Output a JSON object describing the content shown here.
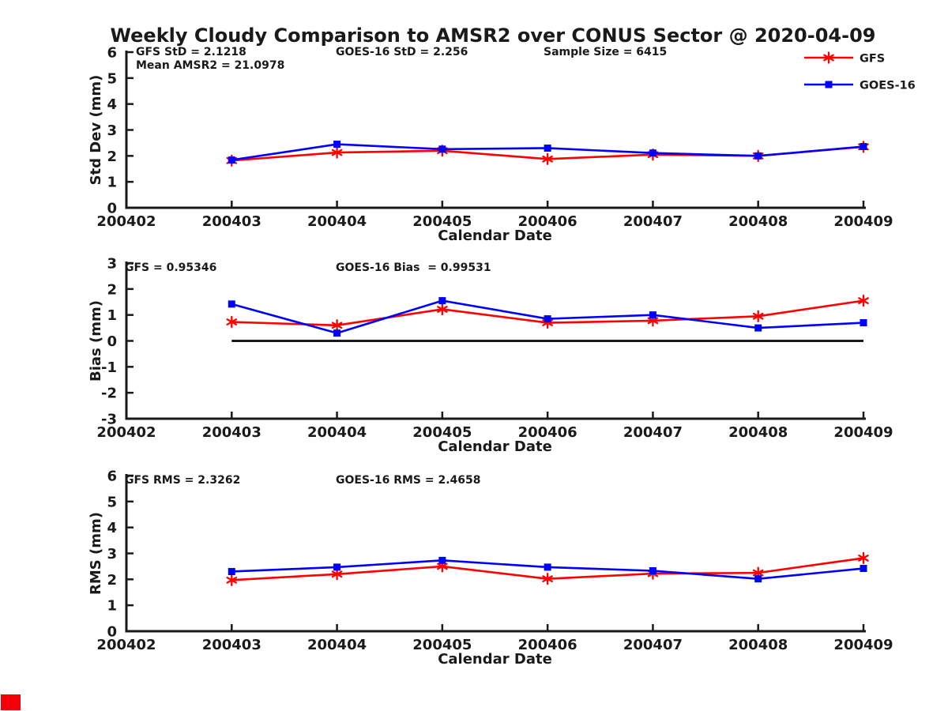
{
  "title": "Weekly Cloudy Comparison to AMSR2 over CONUS Sector @ 2020-04-09",
  "colors": {
    "gfs_red": "#ff0000",
    "goes_blue": "#0000ff",
    "axis": "#1a1a1a",
    "zero_line": "#1a1a1a",
    "corner_marker": "#f40009"
  },
  "legend": {
    "items": [
      {
        "label": "GFS",
        "color": "#ff0000",
        "marker": "asterisk"
      },
      {
        "label": "GOES-16",
        "color": "#0000ff",
        "marker": "square"
      }
    ]
  },
  "chart_data": [
    {
      "type": "line",
      "panel": "std-dev",
      "ylabel": "Std Dev (mm)",
      "xlabel": "Calendar Date",
      "ylim": [
        0,
        6
      ],
      "yticks": [
        0,
        1,
        2,
        3,
        4,
        5,
        6
      ],
      "x_categories": [
        "200402",
        "200403",
        "200404",
        "200405",
        "200406",
        "200407",
        "200408",
        "200409"
      ],
      "grid": false,
      "zero_line": false,
      "annotations": [
        {
          "text": "GFS StD = 2.1218",
          "col": 0,
          "row": 0
        },
        {
          "text": "Mean AMSR2 = 21.0978",
          "col": 0,
          "row": 1
        },
        {
          "text": "GOES-16 StD = 2.256",
          "col": 1,
          "row": 0
        },
        {
          "text": "Sample Size = 6415",
          "col": 2,
          "row": 0
        }
      ],
      "series": [
        {
          "name": "GFS",
          "color": "#ff0000",
          "marker": "asterisk",
          "x": [
            "200403",
            "200404",
            "200405",
            "200406",
            "200407",
            "200408",
            "200409"
          ],
          "values": [
            1.82,
            2.13,
            2.2,
            1.88,
            2.05,
            2.0,
            2.35
          ]
        },
        {
          "name": "GOES-16",
          "color": "#0000ff",
          "marker": "square",
          "x": [
            "200403",
            "200404",
            "200405",
            "200406",
            "200407",
            "200408",
            "200409"
          ],
          "values": [
            1.84,
            2.45,
            2.26,
            2.3,
            2.11,
            2.0,
            2.36
          ]
        }
      ]
    },
    {
      "type": "line",
      "panel": "bias",
      "ylabel": "Bias (mm)",
      "xlabel": "Calendar Date",
      "ylim": [
        -3,
        3
      ],
      "yticks": [
        -3,
        -2,
        -1,
        0,
        1,
        2,
        3
      ],
      "x_categories": [
        "200402",
        "200403",
        "200404",
        "200405",
        "200406",
        "200407",
        "200408",
        "200409"
      ],
      "grid": false,
      "zero_line": true,
      "annotations": [
        {
          "text": "GFS = 0.95346",
          "col": 0,
          "row": 0
        },
        {
          "text": "GOES-16 Bias  = 0.99531",
          "col": 1,
          "row": 0
        }
      ],
      "series": [
        {
          "name": "GFS",
          "color": "#ff0000",
          "marker": "asterisk",
          "x": [
            "200403",
            "200404",
            "200405",
            "200406",
            "200407",
            "200408",
            "200409"
          ],
          "values": [
            0.73,
            0.6,
            1.22,
            0.7,
            0.78,
            0.95,
            1.55
          ]
        },
        {
          "name": "GOES-16",
          "color": "#0000ff",
          "marker": "square",
          "x": [
            "200403",
            "200404",
            "200405",
            "200406",
            "200407",
            "200408",
            "200409"
          ],
          "values": [
            1.42,
            0.3,
            1.55,
            0.85,
            1.0,
            0.5,
            0.7
          ]
        }
      ]
    },
    {
      "type": "line",
      "panel": "rms",
      "ylabel": "RMS (mm)",
      "xlabel": "Calendar Date",
      "ylim": [
        0,
        6
      ],
      "yticks": [
        0,
        1,
        2,
        3,
        4,
        5,
        6
      ],
      "x_categories": [
        "200402",
        "200403",
        "200404",
        "200405",
        "200406",
        "200407",
        "200408",
        "200409"
      ],
      "grid": false,
      "zero_line": false,
      "annotations": [
        {
          "text": "GFS RMS = 2.3262",
          "col": 0,
          "row": 0
        },
        {
          "text": "GOES-16 RMS = 2.4658",
          "col": 1,
          "row": 0
        }
      ],
      "series": [
        {
          "name": "GFS",
          "color": "#ff0000",
          "marker": "asterisk",
          "x": [
            "200403",
            "200404",
            "200405",
            "200406",
            "200407",
            "200408",
            "200409"
          ],
          "values": [
            1.97,
            2.2,
            2.5,
            2.02,
            2.22,
            2.25,
            2.82
          ]
        },
        {
          "name": "GOES-16",
          "color": "#0000ff",
          "marker": "square",
          "x": [
            "200403",
            "200404",
            "200405",
            "200406",
            "200407",
            "200408",
            "200409"
          ],
          "values": [
            2.3,
            2.47,
            2.73,
            2.47,
            2.33,
            2.02,
            2.42
          ]
        }
      ]
    }
  ]
}
